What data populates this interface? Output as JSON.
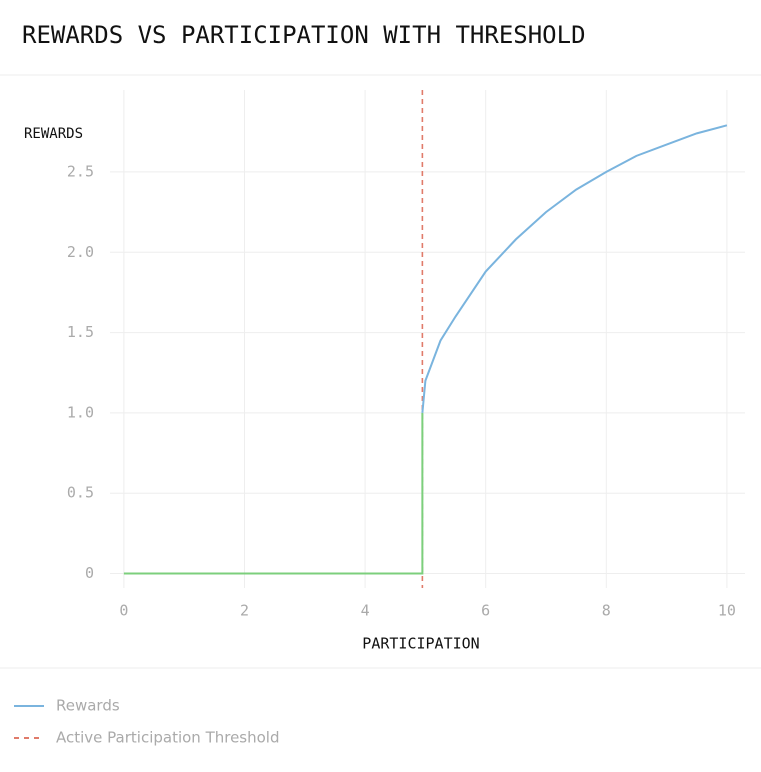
{
  "chart_data": {
    "type": "line",
    "title": "REWARDS VS PARTICIPATION WITH THRESHOLD",
    "x_label": "PARTICIPATION",
    "y_label": "REWARDS",
    "x": [
      0,
      1,
      2,
      3,
      4,
      4.95,
      4.95,
      5,
      5.25,
      5.5,
      6,
      6.5,
      7,
      7.5,
      8,
      8.5,
      9,
      9.5,
      10
    ],
    "series": [
      {
        "name": "Rewards",
        "color": "#7ab4de",
        "below_threshold_color": "#7ccf7c",
        "values": [
          0,
          0,
          0,
          0,
          0,
          0,
          1.0,
          1.2,
          1.45,
          1.6,
          1.88,
          2.08,
          2.25,
          2.39,
          2.5,
          2.6,
          2.67,
          2.74,
          2.79
        ]
      }
    ],
    "threshold": {
      "name": "Active Participation Threshold",
      "x": 4.95,
      "color": "#e07b6a"
    },
    "xlim": [
      -0.23,
      10.3
    ],
    "ylim": [
      -0.09,
      3.01
    ],
    "xticks": [
      0,
      2,
      4,
      6,
      8,
      10
    ],
    "yticks": [
      0,
      0.5,
      {
        "value": 1,
        "label": "1.0"
      },
      1.5,
      {
        "value": 2,
        "label": "2.0"
      },
      2.5
    ],
    "grid": true
  }
}
